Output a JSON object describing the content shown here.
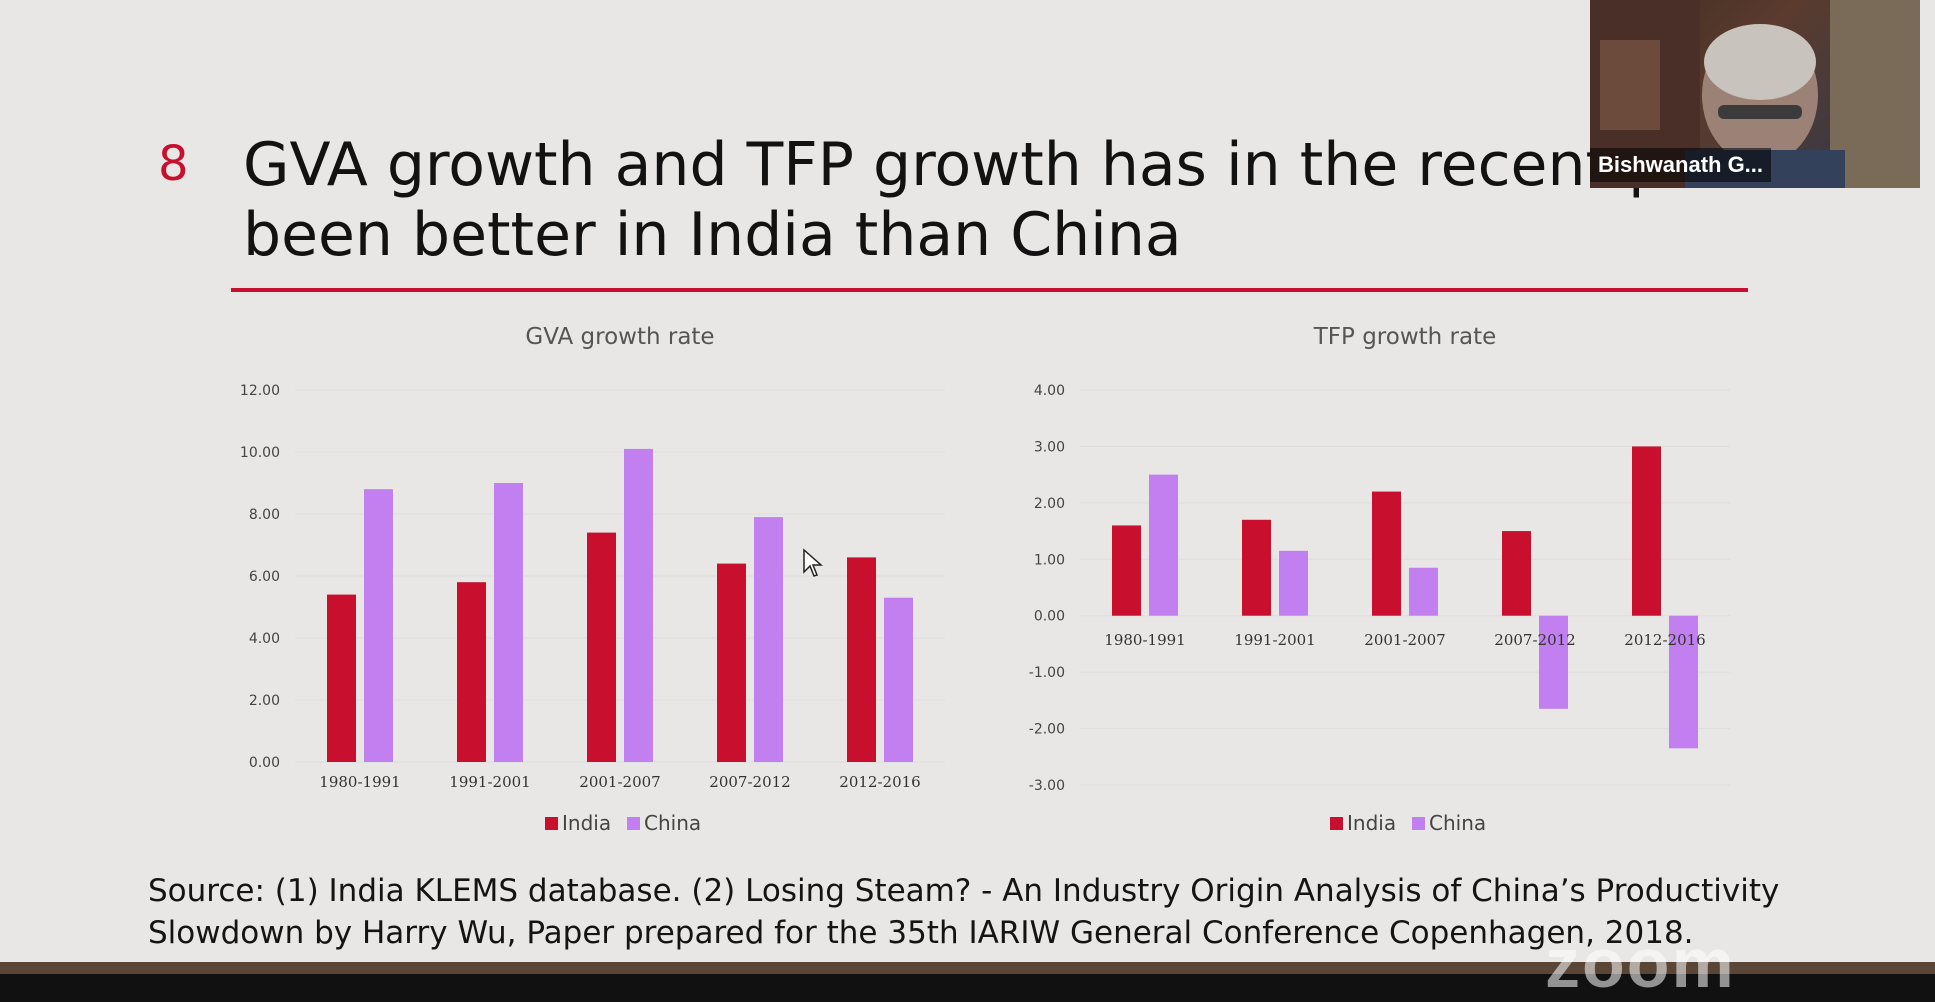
{
  "slide": {
    "number": "8",
    "title_line1": "GVA growth and TFP growth has in the recent period",
    "title_line2": "been better in India than China",
    "source_line1": "Source: (1) India KLEMS database. (2) Losing Steam? - An Industry Origin Analysis of China’s Productivity",
    "source_line2": "Slowdown by Harry Wu, Paper prepared for the 35th IARIW General Conference Copenhagen,  2018."
  },
  "video": {
    "participant_name": "Bishwanath G...",
    "watermark": "zoom"
  },
  "colors": {
    "india": "#c8102e",
    "china": "#c27ff0",
    "accent": "#c8102e",
    "gridline": "#dddddd"
  },
  "chart_data": [
    {
      "type": "bar",
      "title": "GVA growth rate",
      "categories": [
        "1980-1991",
        "1991-2001",
        "2001-2007",
        "2007-2012",
        "2012-2016"
      ],
      "series": [
        {
          "name": "India",
          "values": [
            5.4,
            5.8,
            7.4,
            6.4,
            6.6
          ]
        },
        {
          "name": "China",
          "values": [
            8.8,
            9.0,
            10.1,
            7.9,
            5.3
          ]
        }
      ],
      "yticks": [
        "12.00",
        "10.00",
        "8.00",
        "6.00",
        "4.00",
        "2.00",
        "0.00"
      ],
      "ylim": [
        0,
        12
      ],
      "xlabel": "",
      "ylabel": "",
      "legend": "bottom-center"
    },
    {
      "type": "bar",
      "title": "TFP growth rate",
      "categories": [
        "1980-1991",
        "1991-2001",
        "2001-2007",
        "2007-2012",
        "2012-2016"
      ],
      "series": [
        {
          "name": "India",
          "values": [
            1.6,
            1.7,
            2.2,
            1.5,
            3.0
          ]
        },
        {
          "name": "China",
          "values": [
            2.5,
            1.15,
            0.85,
            -1.65,
            -2.35
          ]
        }
      ],
      "yticks": [
        "4.00",
        "3.00",
        "2.00",
        "1.00",
        "0.00",
        "-1.00",
        "-2.00",
        "-3.00"
      ],
      "ylim": [
        -3,
        4
      ],
      "xlabel": "",
      "ylabel": "",
      "legend": "bottom-center"
    }
  ]
}
